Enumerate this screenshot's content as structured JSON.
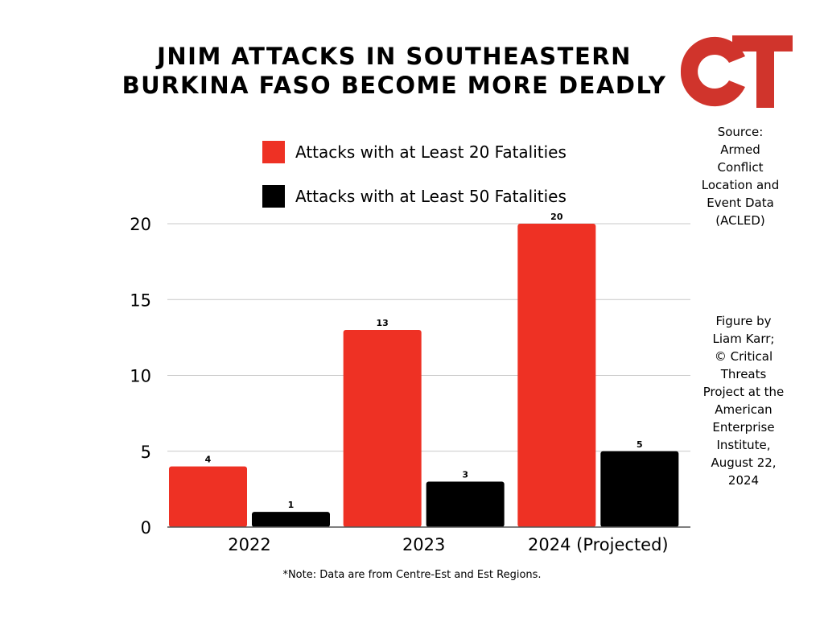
{
  "title_lines": [
    "JNIM ATTACKS IN SOUTHEASTERN",
    "BURKINA FASO BECOME MORE DEADLY"
  ],
  "logo": {
    "text": "CT",
    "color": "#d0342c"
  },
  "source_lines": [
    "Source:",
    "Armed",
    "Conflict",
    "Location and",
    "Event Data",
    "(ACLED)"
  ],
  "credit_lines": [
    "Figure by",
    "Liam Karr;",
    "© Critical",
    "Threats",
    "Project at the",
    "American",
    "Enterprise",
    "Institute,",
    "August 22,",
    "2024"
  ],
  "note": "*Note: Data are from Centre-Est and Est Regions.",
  "chart_data": {
    "type": "bar",
    "title": "JNIM ATTACKS IN SOUTHEASTERN BURKINA FASO BECOME MORE DEADLY",
    "categories": [
      "2022",
      "2023",
      "2024 (Projected)"
    ],
    "series": [
      {
        "name": "Attacks with at Least 20 Fatalities",
        "values": [
          4,
          13,
          20
        ],
        "color": "#ee3124"
      },
      {
        "name": "Attacks with at Least 50 Fatalities",
        "values": [
          1,
          3,
          5
        ],
        "color": "#000000"
      }
    ],
    "ylim": [
      0,
      20
    ],
    "yticks": [
      0,
      5,
      10,
      15,
      20
    ],
    "grid": true,
    "legend_position": "top",
    "data_labels": true
  }
}
